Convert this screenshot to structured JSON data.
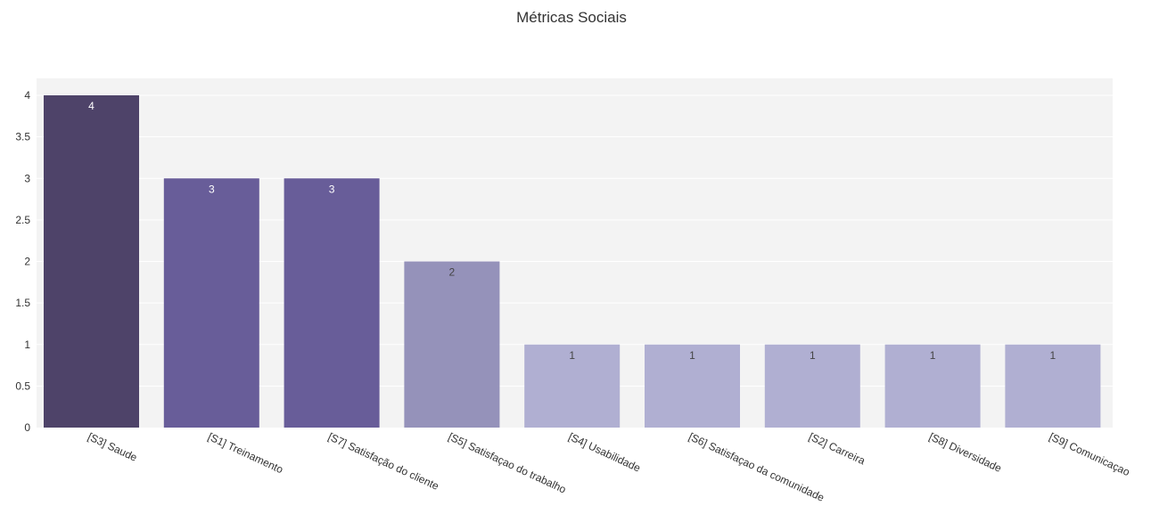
{
  "chart_data": {
    "type": "bar",
    "title": "Métricas Sociais",
    "xlabel": "",
    "ylabel": "",
    "ylim": [
      0,
      4
    ],
    "yticks": [
      "0",
      "0.5",
      "1",
      "1.5",
      "2",
      "2.5",
      "3",
      "3.5",
      "4"
    ],
    "grid": true,
    "legend": "none",
    "categories": [
      "[S3] Saude",
      "[S1] Treinamento",
      "[S7] Satisfação do cliente",
      "[S5] Satisfaçao do trabalho",
      "[S4] Usabilidade",
      "[S6] Satisfaçao da comunidade",
      "[S2] Carreira",
      "[S8] Diversidade",
      "[S9] Comunicaçao"
    ],
    "values": [
      4,
      3,
      3,
      2,
      1,
      1,
      1,
      1,
      1
    ],
    "data_labels": [
      "4",
      "3",
      "3",
      "2",
      "1",
      "1",
      "1",
      "1",
      "1"
    ],
    "colors": {
      "plot_background": "#f3f3f3",
      "gridline": "#ffffff",
      "value_4": "#4e4369",
      "value_3": "#685d99",
      "value_2": "#9592ba",
      "value_1": "#b0afd2",
      "label_on_dark": "#ffffff",
      "label_on_light": "#444444"
    }
  }
}
